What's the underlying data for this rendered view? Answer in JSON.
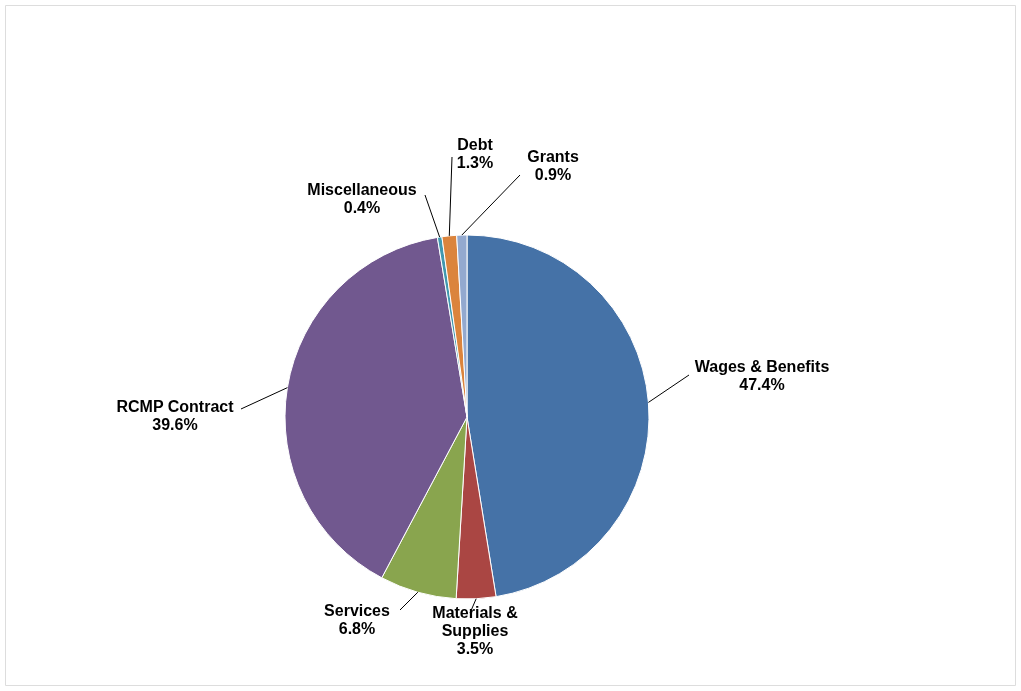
{
  "chart_data": {
    "type": "pie",
    "categories": [
      "Wages & Benefits",
      "Materials & Supplies",
      "Services",
      "RCMP Contract",
      "Miscellaneous",
      "Debt",
      "Grants"
    ],
    "values": [
      47.4,
      3.5,
      6.8,
      39.6,
      0.4,
      1.3,
      0.9
    ],
    "colors": [
      "#4572a7",
      "#aa4643",
      "#89a54e",
      "#71588f",
      "#4198af",
      "#db843d",
      "#93a9cf"
    ],
    "value_labels": [
      "47.4%",
      "3.5%",
      "6.8%",
      "39.6%",
      "0.4%",
      "1.3%",
      "0.9%"
    ]
  }
}
